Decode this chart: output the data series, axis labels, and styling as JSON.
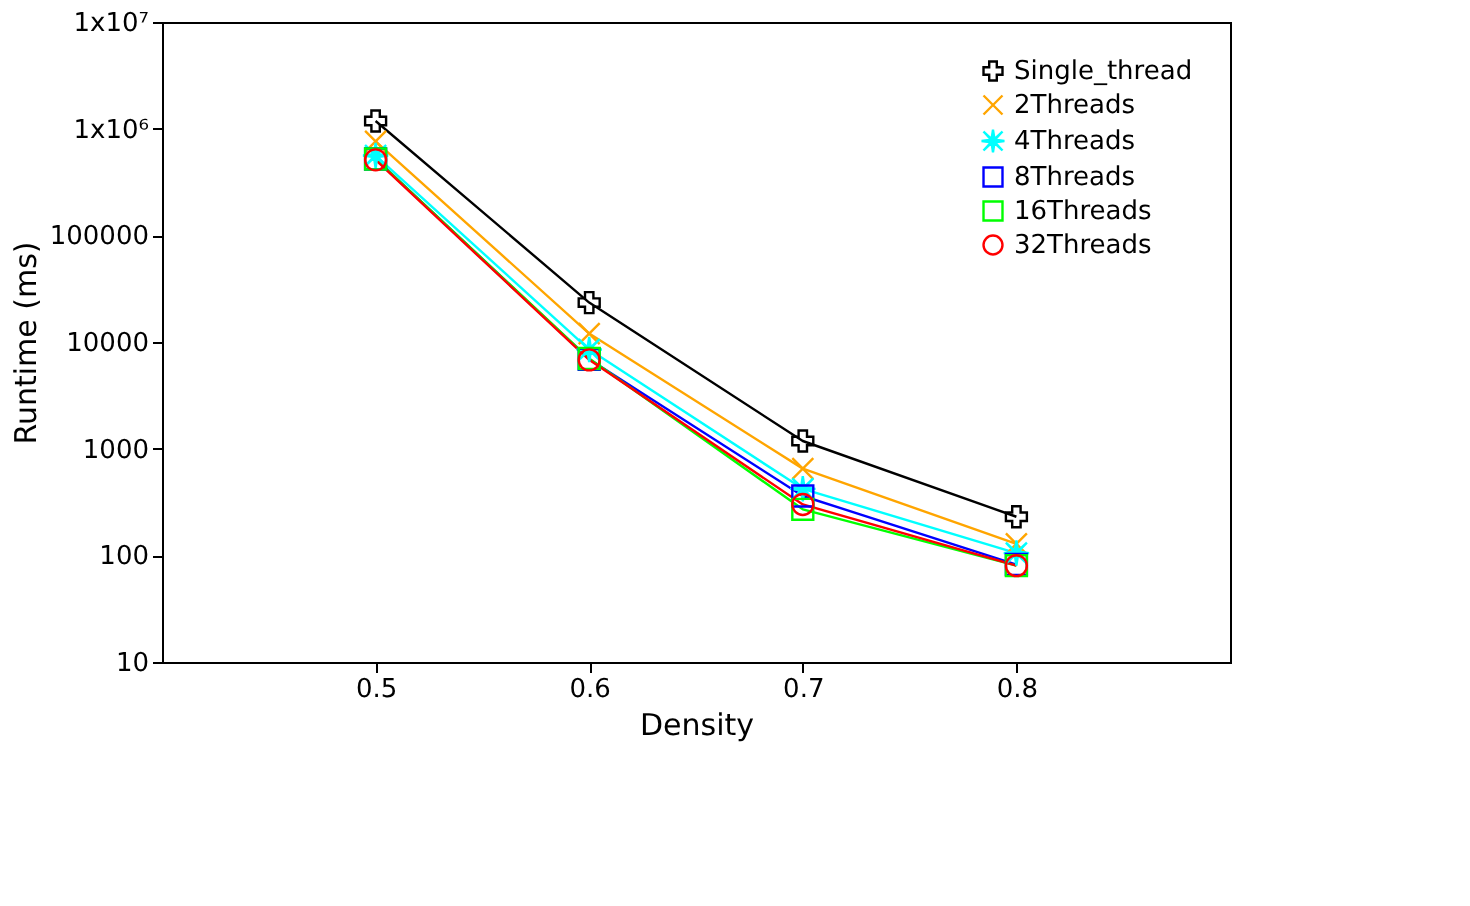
{
  "chart_data": {
    "type": "line",
    "xlabel": "Density",
    "ylabel": "Runtime (ms)",
    "log": "y",
    "x": [
      0.5,
      0.6,
      0.7,
      0.8
    ],
    "xlim": [
      0.4,
      0.9
    ],
    "xticks": [
      0.5,
      0.6,
      0.7,
      0.8
    ],
    "ylim": [
      10,
      10000000
    ],
    "yticks": [
      10,
      100,
      1000,
      10000,
      100000,
      {
        "value": 1000000,
        "label": "1x10⁶"
      },
      {
        "value": 10000000,
        "label": "1x10⁷"
      }
    ],
    "grid": false,
    "legend": "top right",
    "line_style": "solid",
    "series": [
      {
        "name": "Single_thread",
        "color": "#000000",
        "marker": "cross",
        "values": [
          1180000,
          23400,
          1180,
          230
        ]
      },
      {
        "name": "2Threads",
        "color": "#ffa500",
        "marker": "x",
        "values": [
          760000,
          12000,
          650,
          128
        ]
      },
      {
        "name": "4Threads",
        "color": "#00ffff",
        "marker": "star",
        "values": [
          560000,
          8500,
          420,
          105
        ]
      },
      {
        "name": "8Threads",
        "color": "#0000ff",
        "marker": "square",
        "values": [
          520000,
          6900,
          360,
          82
        ]
      },
      {
        "name": "16Threads",
        "color": "#00ff00",
        "marker": "square",
        "values": [
          520000,
          7000,
          270,
          80
        ]
      },
      {
        "name": "32Threads",
        "color": "#ff0000",
        "marker": "circle",
        "values": [
          510000,
          6800,
          300,
          80
        ]
      }
    ]
  }
}
